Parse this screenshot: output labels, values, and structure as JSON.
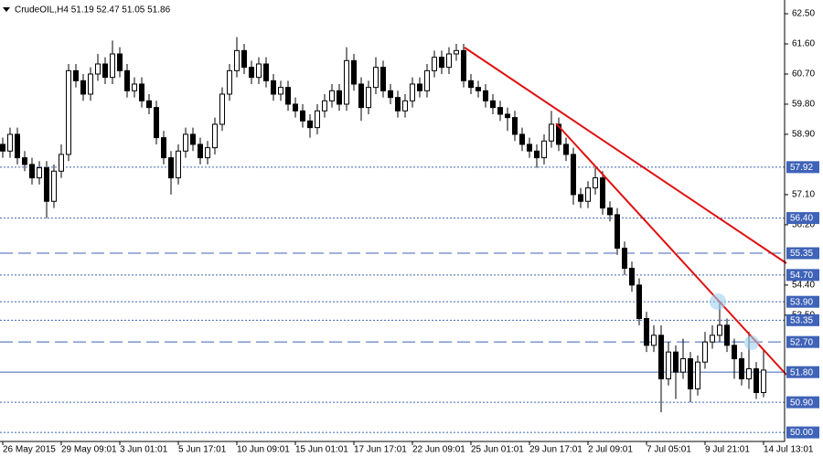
{
  "chart_data": {
    "type": "candlestick",
    "title": "CrudeOIL,H4  51.19 52.47 51.05 51.86",
    "categories": [
      "26 May 2015",
      null,
      null,
      null,
      null,
      null,
      null,
      null,
      "29 May 09:01",
      null,
      null,
      null,
      null,
      null,
      null,
      null,
      "3 Jun 01:01",
      null,
      null,
      null,
      null,
      null,
      null,
      null,
      "5 Jun 17:01",
      null,
      null,
      null,
      null,
      null,
      null,
      null,
      "10 Jun 09:01",
      null,
      null,
      null,
      null,
      null,
      null,
      null,
      "15 Jun 01:01",
      null,
      null,
      null,
      null,
      null,
      null,
      null,
      "17 Jun 17:01",
      null,
      null,
      null,
      null,
      null,
      null,
      null,
      "22 Jun 09:01",
      null,
      null,
      null,
      null,
      null,
      null,
      null,
      "25 Jun 01:01",
      null,
      null,
      null,
      null,
      null,
      null,
      null,
      "29 Jun 17:01",
      null,
      null,
      null,
      null,
      null,
      null,
      null,
      "2 Jul 09:01",
      null,
      null,
      null,
      null,
      null,
      null,
      null,
      "7 Jul 05:01",
      null,
      null,
      null,
      null,
      null,
      null,
      null,
      "9 Jul 21:01",
      null,
      null,
      null,
      null,
      null,
      null,
      null,
      "14 Jul 13:01"
    ],
    "open": [
      58.6,
      58.4,
      58.9,
      58.2,
      58.0,
      57.6,
      57.9,
      56.9,
      57.8,
      58.3,
      60.8,
      60.5,
      60.1,
      60.7,
      61.0,
      60.6,
      61.3,
      60.8,
      60.2,
      60.4,
      59.9,
      59.7,
      58.8,
      58.2,
      57.6,
      58.4,
      58.9,
      58.6,
      58.2,
      58.5,
      59.2,
      60.1,
      60.8,
      61.4,
      60.9,
      60.6,
      61.0,
      60.5,
      60.1,
      60.3,
      59.8,
      59.6,
      59.3,
      59.1,
      59.6,
      59.9,
      60.2,
      59.8,
      61.1,
      60.4,
      59.7,
      60.3,
      60.9,
      60.2,
      60.0,
      59.6,
      59.9,
      60.4,
      60.2,
      60.8,
      61.2,
      60.9,
      61.3,
      61.4,
      60.5,
      60.3,
      60.2,
      59.9,
      59.7,
      59.5,
      59.4,
      58.9,
      58.6,
      58.4,
      58.2,
      58.7,
      59.2,
      58.6,
      58.3,
      57.1,
      56.9,
      57.3,
      57.6,
      56.7,
      56.5,
      55.5,
      54.9,
      54.4,
      53.4,
      52.6,
      52.9,
      51.6,
      52.4,
      51.8,
      52.2,
      51.3,
      52.1,
      52.7,
      52.9,
      53.2,
      52.6,
      52.2,
      51.6,
      51.9,
      51.19
    ],
    "high": [
      58.8,
      59.1,
      59.1,
      58.4,
      58.2,
      58.1,
      58.1,
      58.0,
      58.6,
      61.0,
      61.0,
      60.7,
      60.9,
      61.3,
      61.2,
      61.7,
      61.5,
      61.0,
      60.6,
      60.6,
      60.1,
      59.9,
      59.0,
      58.4,
      58.6,
      59.1,
      59.1,
      58.8,
      58.7,
      59.4,
      60.3,
      61.0,
      61.8,
      61.6,
      61.1,
      61.2,
      61.2,
      60.7,
      60.5,
      60.5,
      60.0,
      59.8,
      59.5,
      59.8,
      60.1,
      60.4,
      60.4,
      61.5,
      61.3,
      60.6,
      60.5,
      61.2,
      61.1,
      60.4,
      60.2,
      60.1,
      60.6,
      60.6,
      61.0,
      61.4,
      61.4,
      61.5,
      61.6,
      61.6,
      60.7,
      60.5,
      60.4,
      60.1,
      59.9,
      59.7,
      59.6,
      59.1,
      58.8,
      58.6,
      58.9,
      59.6,
      59.4,
      58.8,
      58.5,
      57.3,
      57.5,
      57.9,
      57.8,
      56.9,
      56.7,
      55.7,
      55.1,
      54.6,
      53.6,
      53.2,
      53.2,
      52.7,
      52.6,
      52.8,
      52.4,
      52.3,
      53.0,
      53.2,
      53.9,
      53.4,
      52.8,
      52.4,
      53.0,
      52.1,
      52.47
    ],
    "low": [
      58.2,
      58.2,
      58.0,
      57.8,
      57.4,
      57.4,
      56.4,
      56.7,
      57.6,
      58.1,
      60.3,
      59.9,
      59.9,
      60.5,
      60.4,
      60.4,
      60.6,
      60.0,
      60.0,
      59.7,
      59.5,
      58.6,
      58.0,
      57.1,
      57.4,
      58.2,
      58.4,
      58.0,
      58.0,
      58.3,
      59.0,
      59.9,
      60.6,
      60.7,
      60.4,
      60.4,
      60.3,
      59.9,
      59.9,
      59.6,
      59.4,
      59.1,
      58.8,
      58.9,
      59.4,
      59.7,
      59.6,
      59.6,
      60.2,
      59.3,
      59.5,
      60.1,
      60.0,
      59.8,
      59.4,
      59.4,
      59.7,
      60.0,
      60.0,
      60.6,
      60.7,
      60.7,
      61.1,
      60.3,
      60.1,
      60.0,
      59.7,
      59.5,
      59.3,
      59.0,
      58.7,
      58.4,
      58.2,
      57.9,
      58.0,
      58.5,
      58.4,
      58.1,
      56.8,
      56.7,
      56.7,
      57.1,
      56.5,
      56.3,
      55.3,
      54.7,
      54.2,
      53.2,
      52.4,
      52.4,
      50.6,
      51.4,
      51.0,
      51.6,
      50.9,
      51.1,
      51.9,
      52.5,
      52.7,
      52.4,
      51.6,
      51.4,
      51.3,
      51.0,
      51.05
    ],
    "close": [
      58.4,
      58.9,
      58.2,
      58.0,
      57.6,
      57.9,
      56.9,
      57.8,
      58.3,
      60.8,
      60.5,
      60.1,
      60.7,
      61.0,
      60.6,
      61.3,
      60.8,
      60.2,
      60.4,
      59.9,
      59.7,
      58.8,
      58.2,
      57.6,
      58.4,
      58.9,
      58.6,
      58.2,
      58.5,
      59.2,
      60.1,
      60.8,
      61.4,
      60.9,
      60.6,
      61.0,
      60.5,
      60.1,
      60.3,
      59.8,
      59.6,
      59.3,
      59.1,
      59.6,
      59.9,
      60.2,
      59.8,
      61.1,
      60.4,
      59.7,
      60.3,
      60.9,
      60.2,
      60.0,
      59.6,
      59.9,
      60.4,
      60.2,
      60.8,
      61.2,
      60.9,
      61.3,
      61.4,
      60.5,
      60.3,
      60.2,
      59.9,
      59.7,
      59.5,
      59.4,
      58.9,
      58.6,
      58.4,
      58.2,
      58.7,
      59.2,
      58.6,
      58.3,
      57.1,
      56.9,
      57.3,
      57.6,
      56.7,
      56.5,
      55.5,
      54.9,
      54.4,
      53.4,
      52.6,
      52.9,
      51.6,
      52.4,
      51.8,
      52.2,
      51.3,
      52.1,
      52.7,
      52.9,
      53.2,
      52.6,
      52.2,
      51.6,
      51.9,
      51.19,
      51.86
    ],
    "ylim": [
      49.73,
      62.91
    ],
    "yticks": [
      {
        "value": 62.5,
        "label": "62.50"
      },
      {
        "value": 61.6,
        "label": "61.60"
      },
      {
        "value": 60.7,
        "label": "60.70"
      },
      {
        "value": 59.8,
        "label": "59.80"
      },
      {
        "value": 58.9,
        "label": "58.90"
      },
      {
        "value": 57.1,
        "label": "57.10"
      },
      {
        "value": 56.2,
        "label": "56.20"
      },
      {
        "value": 54.4,
        "label": "54.40"
      },
      {
        "value": 53.5,
        "label": "53.50"
      }
    ],
    "levels": [
      {
        "value": 57.92,
        "label": "57.92",
        "style": "dotted"
      },
      {
        "value": 56.4,
        "label": "56.40",
        "style": "dotted"
      },
      {
        "value": 55.35,
        "label": "55.35",
        "style": "dashed"
      },
      {
        "value": 54.7,
        "label": "54.70",
        "style": "dotted"
      },
      {
        "value": 53.9,
        "label": "53.90",
        "style": "dotted"
      },
      {
        "value": 53.35,
        "label": "53.35",
        "style": "dotted"
      },
      {
        "value": 52.7,
        "label": "52.70",
        "style": "dashed"
      },
      {
        "value": 51.8,
        "label": "51.80",
        "style": "solid"
      },
      {
        "value": 50.9,
        "label": "50.90",
        "style": "dotted"
      },
      {
        "value": 50.0,
        "label": "50.00",
        "style": "dotted"
      }
    ],
    "bull_color": "#ffffff",
    "bear_color": "#000000",
    "level_color": "#3f63b8"
  }
}
